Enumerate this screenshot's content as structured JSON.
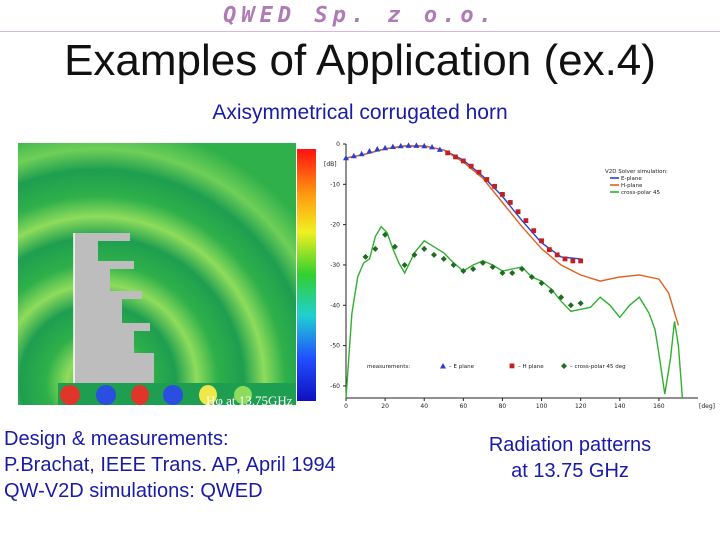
{
  "header": {
    "brand": "QWED Sp. z o.o.",
    "title": "Examples of Application (ex.4)",
    "subtitle": "Axisymmetrical corrugated horn"
  },
  "field_plot": {
    "label": "Hφ at 13.75GHz",
    "colors": {
      "green": "#2fb04a",
      "light_green": "#8edc5c",
      "yellow": "#f0e84a",
      "red": "#e0352a",
      "blue": "#2a4ee0",
      "metal": "#bdbdbd"
    }
  },
  "captions": {
    "left_lines": [
      "Design & measurements:",
      "P.Brachat, IEEE Trans. AP, April 1994",
      "QW-V2D simulations: QWED"
    ],
    "right_lines": [
      "Radiation patterns",
      "at 13.75 GHz"
    ]
  },
  "chart_data": {
    "type": "line",
    "ylabel": "[dB]",
    "xlabel": "[deg]",
    "xlim": [
      0,
      180
    ],
    "ylim": [
      -63,
      0
    ],
    "x_ticks": [
      "0",
      "20",
      "40",
      "60",
      "80",
      "100",
      "120",
      "140",
      "160"
    ],
    "y_ticks": [
      "0",
      "-10",
      "-20",
      "-30",
      "-40",
      "-50",
      "-60"
    ],
    "legend_top": {
      "title": "V2D Solver simulation:",
      "position": "top-right",
      "entries": [
        "E-plane",
        "H-plane",
        "cross-polar 45"
      ]
    },
    "legend_bottom": {
      "title": "measurements:",
      "entries": [
        "E plane",
        "H plane",
        "cross-polar 45 deg"
      ]
    },
    "series": [
      {
        "name": "E-plane",
        "kind": "line",
        "color": "#2a3fd0",
        "x": [
          0,
          10,
          20,
          30,
          40,
          50,
          60,
          70,
          80,
          90,
          100,
          110,
          120
        ],
        "y": [
          -3.5,
          -2.5,
          -1.2,
          -0.5,
          -0.5,
          -1.5,
          -4.0,
          -8.0,
          -13.0,
          -19.0,
          -24.5,
          -28.0,
          -28.5
        ]
      },
      {
        "name": "H-plane",
        "kind": "line",
        "color": "#e06020",
        "x": [
          0,
          10,
          20,
          30,
          40,
          50,
          60,
          70,
          80,
          90,
          100,
          110,
          120,
          130,
          140,
          150,
          160,
          165,
          170
        ],
        "y": [
          -3.5,
          -2.5,
          -1.2,
          -0.5,
          -0.5,
          -1.5,
          -4.5,
          -8.5,
          -14.5,
          -20.5,
          -26.0,
          -30.0,
          -32.5,
          -34.0,
          -33.0,
          -32.5,
          -33.5,
          -37.0,
          -45.0
        ]
      },
      {
        "name": "cross-polar 45",
        "kind": "line",
        "color": "#30b030",
        "x": [
          0,
          3,
          6,
          9,
          12,
          15,
          18,
          21,
          24,
          27,
          30,
          35,
          40,
          45,
          50,
          55,
          60,
          65,
          70,
          75,
          80,
          85,
          90,
          95,
          100,
          105,
          110,
          115,
          120,
          125,
          130,
          135,
          140,
          145,
          150,
          155,
          158,
          160,
          163,
          166,
          168,
          170,
          172
        ],
        "y": [
          -63,
          -42,
          -33,
          -29.5,
          -28.5,
          -23,
          -20.5,
          -22,
          -26,
          -29.5,
          -32,
          -27,
          -24,
          -25.5,
          -27,
          -29.5,
          -31.5,
          -30,
          -29,
          -30,
          -31.5,
          -31,
          -30.5,
          -33,
          -34,
          -36,
          -39,
          -41.5,
          -41,
          -40.5,
          -38,
          -40,
          -43,
          -40,
          -38,
          -42,
          -46,
          -52,
          -62,
          -53,
          -44,
          -50,
          -63
        ]
      },
      {
        "name": "E plane",
        "kind": "markers",
        "marker": "triangle",
        "color": "#2a3fd0",
        "x": [
          0,
          4,
          8,
          12,
          16,
          20,
          24,
          28,
          32,
          36,
          40,
          44,
          48
        ],
        "y": [
          -3.5,
          -3.0,
          -2.5,
          -1.8,
          -1.3,
          -1.0,
          -0.7,
          -0.5,
          -0.4,
          -0.4,
          -0.5,
          -0.8,
          -1.4
        ]
      },
      {
        "name": "H plane",
        "kind": "markers",
        "marker": "square",
        "color": "#c02020",
        "x": [
          52,
          56,
          60,
          64,
          68,
          72,
          76,
          80,
          84,
          88,
          92,
          96,
          100,
          104,
          108,
          112,
          116,
          120
        ],
        "y": [
          -2.2,
          -3.2,
          -4.2,
          -5.5,
          -7.0,
          -8.8,
          -10.5,
          -12.5,
          -14.5,
          -16.8,
          -19.0,
          -21.5,
          -24.0,
          -26.2,
          -27.5,
          -28.5,
          -29.0,
          -29.0
        ]
      },
      {
        "name": "cross-polar 45 deg",
        "kind": "markers",
        "marker": "diamond",
        "color": "#1f6b1f",
        "x": [
          10,
          15,
          20,
          25,
          30,
          35,
          40,
          45,
          50,
          55,
          60,
          65,
          70,
          75,
          80,
          85,
          90,
          95,
          100,
          105,
          110,
          115,
          120
        ],
        "y": [
          -28,
          -26,
          -22.5,
          -25.5,
          -30,
          -27.5,
          -26,
          -27.5,
          -28.5,
          -30,
          -31.5,
          -31,
          -29.5,
          -30.5,
          -32,
          -32,
          -31,
          -33,
          -34.5,
          -36.5,
          -38,
          -40,
          -39.5
        ]
      }
    ]
  }
}
